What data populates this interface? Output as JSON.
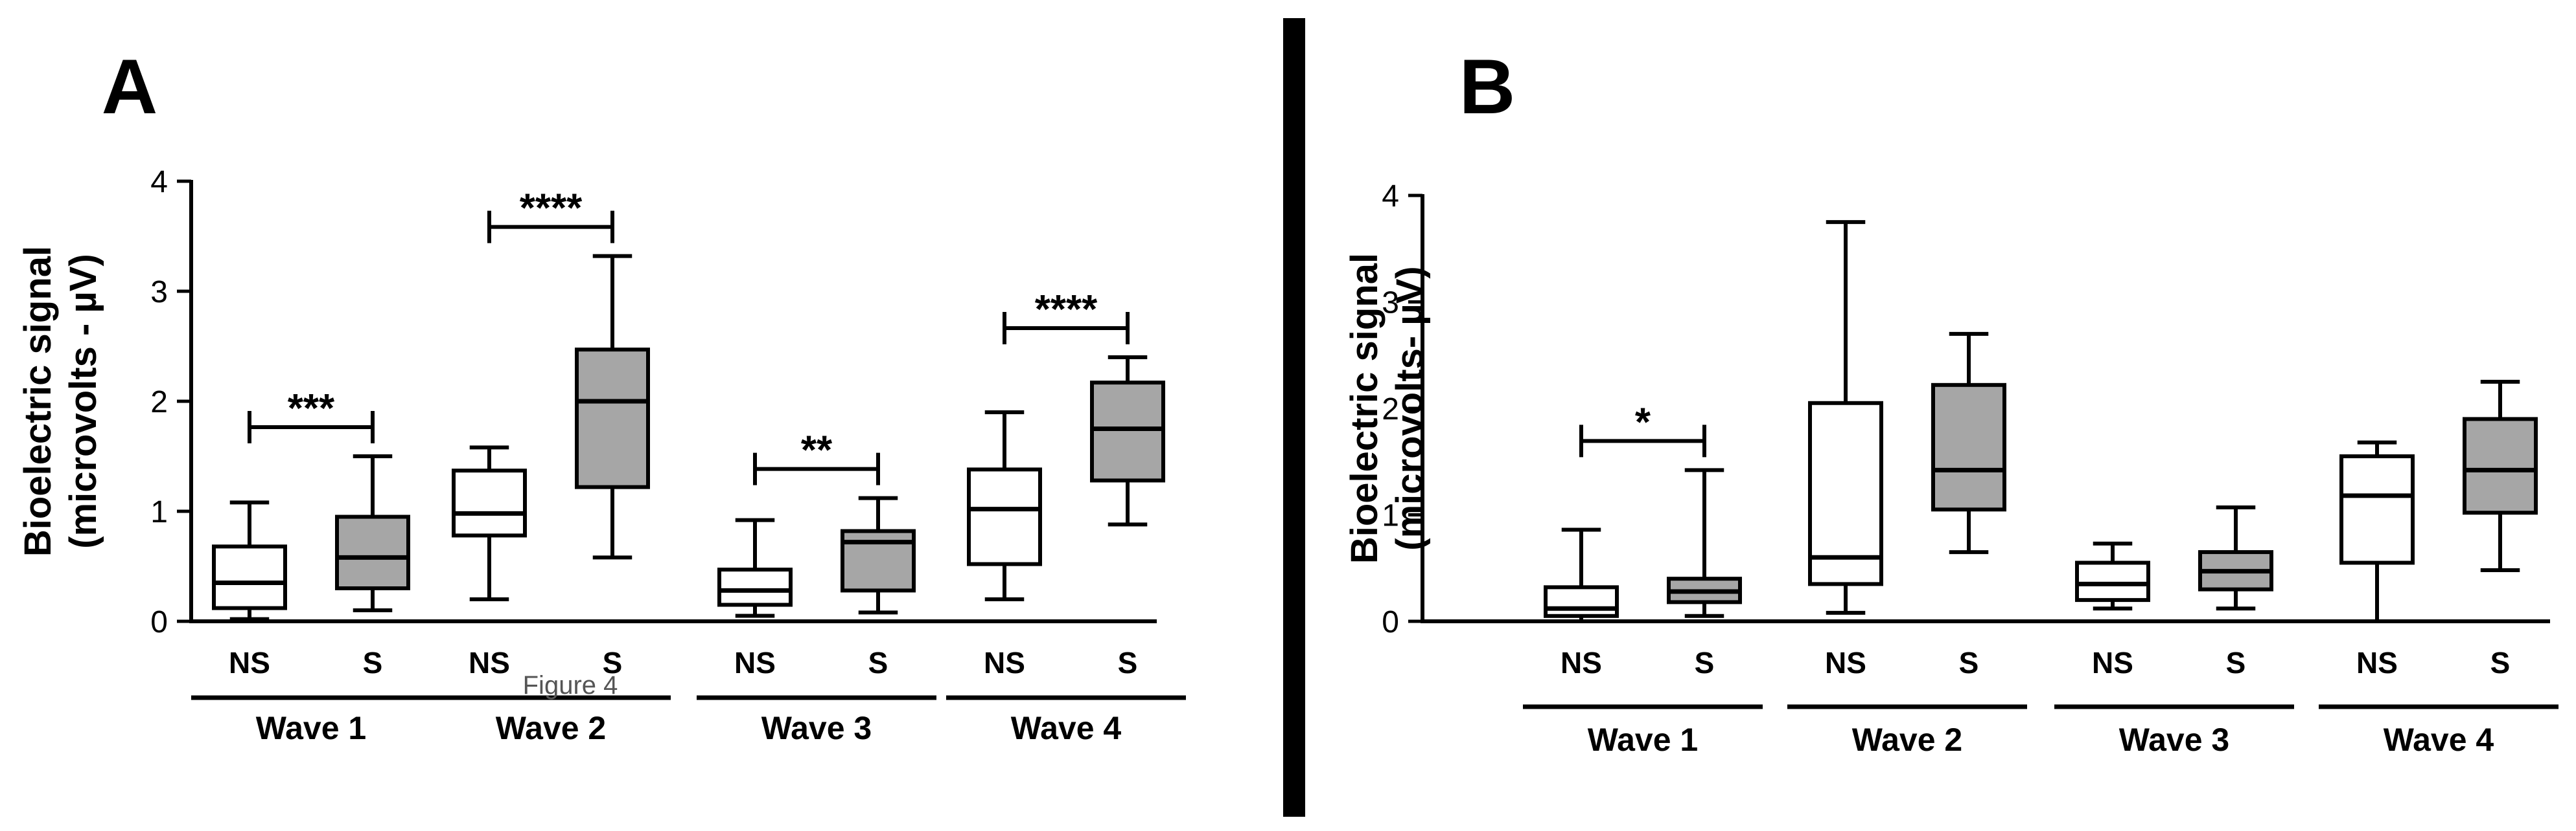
{
  "figure_caption": "Figure 4",
  "colors": {
    "ns_fill": "#ffffff",
    "s_fill": "#a6a6a6",
    "stroke": "#000000",
    "divider": "#000000"
  },
  "chart_data": [
    {
      "panel": "A",
      "type": "box",
      "ylabel_line1": "Bioelectric signal",
      "ylabel_line2": "(microvolts - µV)",
      "ylim": [
        0,
        4
      ],
      "yticks": [
        "0",
        "1",
        "2",
        "3",
        "4"
      ],
      "groups": [
        {
          "label": "Wave 1",
          "significance": "***",
          "boxes": [
            {
              "label": "NS",
              "kind": "NS",
              "min": 0.02,
              "q1": 0.12,
              "median": 0.35,
              "q3": 0.68,
              "max": 1.08
            },
            {
              "label": "S",
              "kind": "S",
              "min": 0.1,
              "q1": 0.3,
              "median": 0.58,
              "q3": 0.95,
              "max": 1.5
            }
          ]
        },
        {
          "label": "Wave 2",
          "significance": "****",
          "boxes": [
            {
              "label": "NS",
              "kind": "NS",
              "min": 0.2,
              "q1": 0.78,
              "median": 0.98,
              "q3": 1.37,
              "max": 1.58
            },
            {
              "label": "S",
              "kind": "S",
              "min": 0.58,
              "q1": 1.22,
              "median": 2.0,
              "q3": 2.47,
              "max": 3.32
            }
          ]
        },
        {
          "label": "Wave 3",
          "significance": "**",
          "boxes": [
            {
              "label": "NS",
              "kind": "NS",
              "min": 0.05,
              "q1": 0.15,
              "median": 0.28,
              "q3": 0.47,
              "max": 0.92
            },
            {
              "label": "S",
              "kind": "S",
              "min": 0.08,
              "q1": 0.28,
              "median": 0.72,
              "q3": 0.82,
              "max": 1.12
            }
          ]
        },
        {
          "label": "Wave 4",
          "significance": "****",
          "boxes": [
            {
              "label": "NS",
              "kind": "NS",
              "min": 0.2,
              "q1": 0.52,
              "median": 1.02,
              "q3": 1.38,
              "max": 1.9
            },
            {
              "label": "S",
              "kind": "S",
              "min": 0.88,
              "q1": 1.28,
              "median": 1.75,
              "q3": 2.17,
              "max": 2.4
            }
          ]
        }
      ]
    },
    {
      "panel": "B",
      "type": "box",
      "ylabel_line1": "Bioelectric signal",
      "ylabel_line2": "(microvolts- µV)",
      "ylim": [
        0,
        4
      ],
      "yticks": [
        "0",
        "1",
        "2",
        "3",
        "4"
      ],
      "groups": [
        {
          "label": "Wave 1",
          "significance": "*",
          "boxes": [
            {
              "label": "NS",
              "kind": "NS",
              "min": 0.0,
              "q1": 0.05,
              "median": 0.12,
              "q3": 0.32,
              "max": 0.86
            },
            {
              "label": "S",
              "kind": "S",
              "min": 0.05,
              "q1": 0.18,
              "median": 0.28,
              "q3": 0.4,
              "max": 1.42
            }
          ]
        },
        {
          "label": "Wave 2",
          "significance": "",
          "boxes": [
            {
              "label": "NS",
              "kind": "NS",
              "min": 0.08,
              "q1": 0.35,
              "median": 0.6,
              "q3": 2.05,
              "max": 3.75
            },
            {
              "label": "S",
              "kind": "S",
              "min": 0.65,
              "q1": 1.05,
              "median": 1.42,
              "q3": 2.22,
              "max": 2.7
            }
          ]
        },
        {
          "label": "Wave 3",
          "significance": "",
          "boxes": [
            {
              "label": "NS",
              "kind": "NS",
              "min": 0.12,
              "q1": 0.2,
              "median": 0.35,
              "q3": 0.55,
              "max": 0.73
            },
            {
              "label": "S",
              "kind": "S",
              "min": 0.12,
              "q1": 0.3,
              "median": 0.47,
              "q3": 0.65,
              "max": 1.07
            }
          ]
        },
        {
          "label": "Wave 4",
          "significance": "",
          "boxes": [
            {
              "label": "NS",
              "kind": "NS",
              "min": 0.0,
              "q1": 0.55,
              "median": 1.18,
              "q3": 1.55,
              "max": 1.68
            },
            {
              "label": "S",
              "kind": "S",
              "min": 0.48,
              "q1": 1.02,
              "median": 1.42,
              "q3": 1.9,
              "max": 2.25
            }
          ]
        }
      ]
    }
  ]
}
